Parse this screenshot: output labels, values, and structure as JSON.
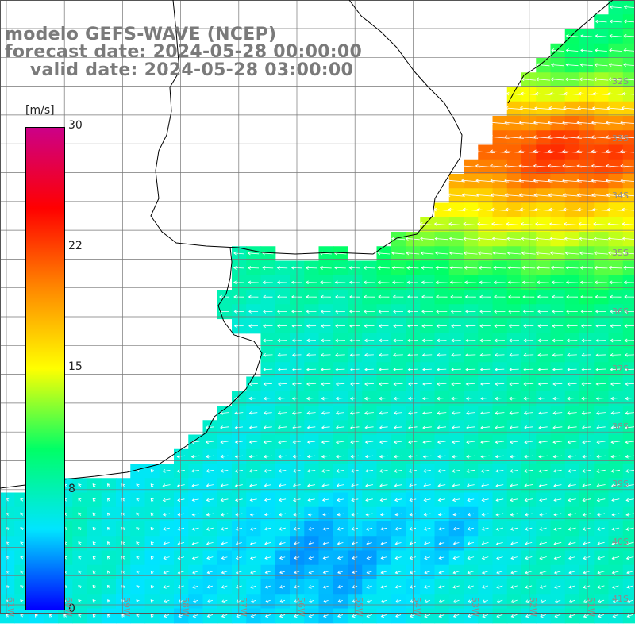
{
  "title": {
    "line1": "modelo GEFS-WAVE (NCEP)",
    "line2": "forecast date: 2024-05-28 00:00:00",
    "line3": "    valid date: 2024-05-28 03:00:00"
  },
  "colorbar": {
    "unit": "[m/s]",
    "ticks": [
      "30",
      "22",
      "15",
      "8",
      "0"
    ],
    "tick_values": [
      30,
      22,
      15,
      8,
      0
    ],
    "stops": [
      "#0000ff",
      "#00e5ff",
      "#00ff66",
      "#ffff00",
      "#ff8800",
      "#ff0000",
      "#cc0088"
    ]
  },
  "latitude_labels": [
    "32S",
    "33S",
    "34S",
    "35S",
    "36S",
    "37S",
    "38S",
    "39S",
    "40S",
    "41S"
  ],
  "longitude_labels": [
    "61W",
    "60W",
    "59W",
    "58W",
    "57W",
    "56W",
    "55W",
    "54W",
    "53W",
    "52W",
    "51W"
  ],
  "colors": {
    "land": "#ffffff",
    "grid": "#777777",
    "coast": "#000000",
    "arrow": "#ffffff"
  }
}
